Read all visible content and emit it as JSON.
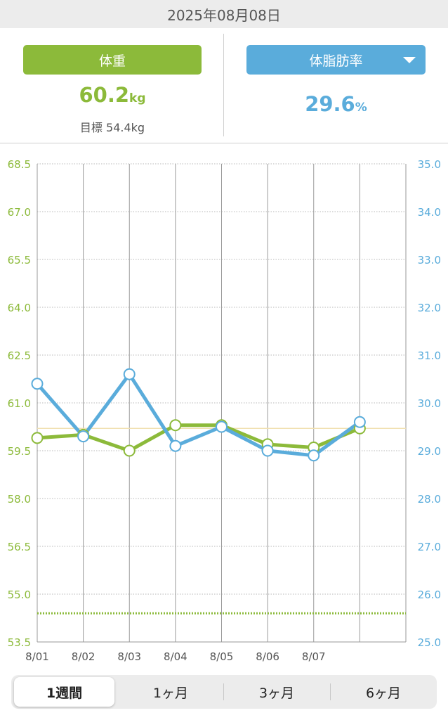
{
  "header": {
    "date": "2025年08月08日"
  },
  "stats": {
    "weight_button": "体重",
    "weight_value": "60.2",
    "weight_unit": "kg",
    "goal": "目標 54.4kg",
    "fat_button": "体脂肪率",
    "fat_value": "29.6",
    "fat_unit": "%"
  },
  "colors": {
    "weight": "#8cba3a",
    "fat": "#5aacdb"
  },
  "range_tabs": [
    "1週間",
    "1ヶ月",
    "3ヶ月",
    "6ヶ月"
  ],
  "active_range": "1週間",
  "chart_data": {
    "type": "line",
    "x": [
      "8/01",
      "8/02",
      "8/03",
      "8/04",
      "8/05",
      "8/06",
      "8/07",
      "8/08"
    ],
    "x_tick_labels": [
      "8/01",
      "8/02",
      "8/03",
      "8/04",
      "8/05",
      "8/06",
      "8/07"
    ],
    "y_left": {
      "ticks": [
        "68.5",
        "67.0",
        "65.5",
        "64.0",
        "62.5",
        "61.0",
        "59.5",
        "58.0",
        "56.5",
        "55.0",
        "53.5"
      ],
      "ylim": [
        53.5,
        68.5
      ]
    },
    "y_right": {
      "ticks": [
        "35.0",
        "34.0",
        "33.0",
        "32.0",
        "31.0",
        "30.0",
        "29.0",
        "28.0",
        "27.0",
        "26.0",
        "25.0"
      ],
      "ylim": [
        25.0,
        35.0
      ]
    },
    "series": [
      {
        "axis": "left",
        "color": "#8cba3a",
        "values": [
          59.9,
          60.0,
          59.5,
          60.3,
          60.3,
          59.7,
          59.6,
          60.2
        ]
      },
      {
        "axis": "right",
        "color": "#5aacdb",
        "values": [
          30.4,
          29.3,
          30.6,
          29.1,
          29.5,
          29.0,
          28.9,
          29.6
        ]
      }
    ],
    "reference_lines": [
      {
        "axis": "left",
        "value": 60.2,
        "style": "solid",
        "color": "#f0e0b0"
      },
      {
        "axis": "left",
        "value": 54.4,
        "style": "dotted",
        "color": "#8cba3a"
      }
    ],
    "grid": true
  }
}
